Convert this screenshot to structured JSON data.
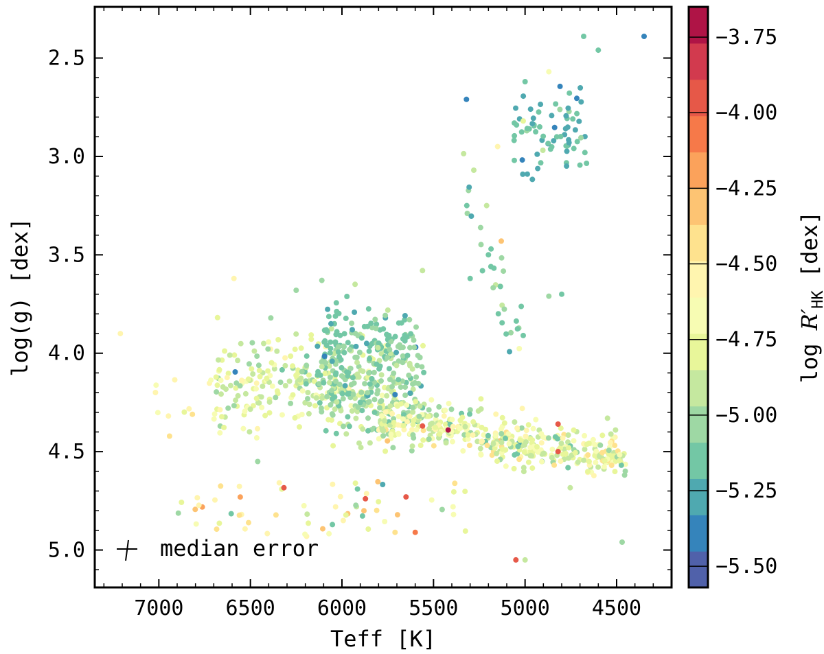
{
  "chart_data": {
    "type": "scatter",
    "xlabel": "Teff [K]",
    "ylabel": "log(g) [dex]",
    "xlim": [
      7350,
      4200
    ],
    "ylim": [
      5.19,
      2.24
    ],
    "x_inverted": true,
    "y_inverted": true,
    "xticks": [
      7000,
      6500,
      6000,
      5500,
      5000,
      4500
    ],
    "xtick_labels": [
      "7000",
      "6500",
      "6000",
      "5500",
      "5000",
      "4500"
    ],
    "yticks": [
      2.5,
      3.0,
      3.5,
      4.0,
      4.5,
      5.0
    ],
    "ytick_labels": [
      "2.5",
      "3.0",
      "3.5",
      "4.0",
      "4.5",
      "5.0"
    ],
    "grid": false,
    "colorbar": {
      "label_prefix": "log ",
      "label_symbol": "R′",
      "label_subscript": "HK",
      "label_suffix": " [dex]",
      "range": [
        -5.57,
        -3.65
      ],
      "ticks": [
        -3.75,
        -4.0,
        -4.25,
        -4.5,
        -4.75,
        -5.0,
        -5.25,
        -5.5
      ],
      "tick_labels": [
        "−3.75",
        "−4.00",
        "−4.25",
        "−4.50",
        "−4.75",
        "−5.00",
        "−5.25",
        "−5.50"
      ],
      "colormap": "Spectral",
      "levels": 16
    },
    "annotation": {
      "text": "median error",
      "err_x": 0.0,
      "err_y": 0.0
    },
    "points_sample": [
      [
        4350,
        2.39,
        -5.45
      ],
      [
        4680,
        2.39,
        -5.2
      ],
      [
        4600,
        2.46,
        -5.2
      ],
      [
        5320,
        2.71,
        -5.4
      ],
      [
        5000,
        2.62,
        -5.15
      ],
      [
        4870,
        2.57,
        -4.7
      ],
      [
        4920,
        2.85,
        -5.2
      ],
      [
        4970,
        2.76,
        -5.3
      ],
      [
        5010,
        2.82,
        -4.75
      ],
      [
        4760,
        2.93,
        -5.25
      ],
      [
        5150,
        2.95,
        -4.6
      ],
      [
        5280,
        3.07,
        -4.9
      ],
      [
        5210,
        3.25,
        -4.9
      ],
      [
        5130,
        3.43,
        -4.3
      ],
      [
        5200,
        3.5,
        -5.1
      ],
      [
        5300,
        3.62,
        -5.15
      ],
      [
        5010,
        3.91,
        -5.1
      ],
      [
        4870,
        3.71,
        -5.05
      ],
      [
        4800,
        3.7,
        -5.15
      ],
      [
        5560,
        3.58,
        -4.9
      ],
      [
        6110,
        3.63,
        -5.0
      ],
      [
        6590,
        3.62,
        -4.6
      ],
      [
        7210,
        3.9,
        -4.6
      ],
      [
        6250,
        3.68,
        -5.0
      ],
      [
        5710,
        4.21,
        -5.4
      ],
      [
        6060,
        3.85,
        -5.3
      ],
      [
        5420,
        4.39,
        -3.7
      ],
      [
        5560,
        4.37,
        -3.95
      ],
      [
        4820,
        4.36,
        -3.95
      ],
      [
        5650,
        4.73,
        -3.95
      ],
      [
        5600,
        4.91,
        -4.05
      ],
      [
        5050,
        5.05,
        -4.0
      ],
      [
        4820,
        4.5,
        -3.9
      ],
      [
        4470,
        4.96,
        -5.0
      ],
      [
        4550,
        4.33,
        -4.9
      ],
      [
        5000,
        5.05,
        -4.9
      ],
      [
        5880,
        4.8,
        -4.3
      ],
      [
        5900,
        4.25,
        -5.2
      ],
      [
        6460,
        4.55,
        -5.0
      ]
    ]
  }
}
